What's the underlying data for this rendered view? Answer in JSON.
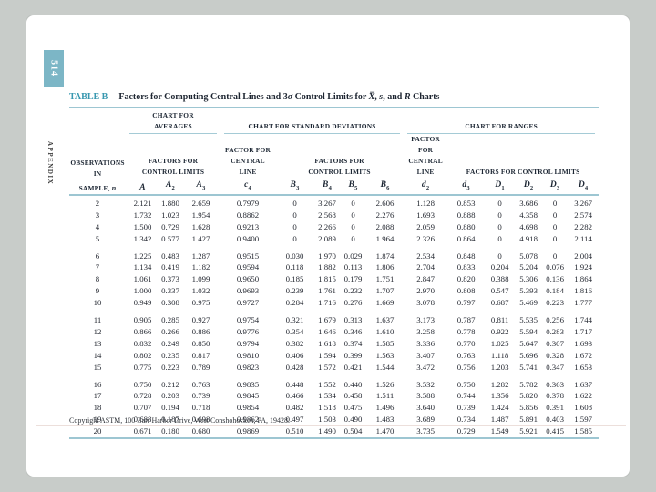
{
  "page": {
    "page_number": "514",
    "sidebar_label": "APPENDIX",
    "copyright": "Copyright ASTM, 100 Barr Harbor Drive, West Conshohocken, PA, 19428."
  },
  "table": {
    "label": "TABLE B",
    "title_parts": [
      {
        "t": "Factors for Computing Central Lines and 3",
        "i": false
      },
      {
        "t": "σ",
        "i": true
      },
      {
        "t": " Control Limits for ",
        "i": false
      },
      {
        "t": "X̅",
        "i": true
      },
      {
        "t": ", ",
        "i": false
      },
      {
        "t": "s",
        "i": true
      },
      {
        "t": ", and ",
        "i": false
      },
      {
        "t": "R",
        "i": true
      },
      {
        "t": " Charts",
        "i": false
      }
    ],
    "obs_header": {
      "line1": "OBSERVATIONS",
      "line2": "IN",
      "line3": "SAMPLE,",
      "symbol": "n"
    },
    "groups": {
      "averages_line1": "CHART FOR",
      "averages_line2": "AVERAGES",
      "stddev": "CHART FOR STANDARD DEVIATIONS",
      "ranges": "CHART FOR RANGES"
    },
    "subheads": {
      "avg_factors": [
        "FACTORS FOR",
        "CONTROL LIMITS"
      ],
      "sd_central": [
        "FACTOR FOR",
        "CENTRAL LINE"
      ],
      "sd_factors": [
        "FACTORS FOR",
        "CONTROL LIMITS"
      ],
      "rg_central": [
        "FACTOR FOR",
        "CENTRAL LINE"
      ],
      "rg_factors": "FACTORS FOR CONTROL LIMITS"
    },
    "symbols": [
      {
        "b": "A",
        "s": ""
      },
      {
        "b": "A",
        "s": "2"
      },
      {
        "b": "A",
        "s": "3"
      },
      {
        "b": "c",
        "s": "4"
      },
      {
        "b": "B",
        "s": "3"
      },
      {
        "b": "B",
        "s": "4"
      },
      {
        "b": "B",
        "s": "5"
      },
      {
        "b": "B",
        "s": "6"
      },
      {
        "b": "d",
        "s": "2"
      },
      {
        "b": "d",
        "s": "3"
      },
      {
        "b": "D",
        "s": "1"
      },
      {
        "b": "D",
        "s": "2"
      },
      {
        "b": "D",
        "s": "3"
      },
      {
        "b": "D",
        "s": "4"
      }
    ],
    "group_gap_after": [
      "5",
      "10",
      "15"
    ],
    "rows": [
      [
        "2",
        "2.121",
        "1.880",
        "2.659",
        "0.7979",
        "0",
        "3.267",
        "0",
        "2.606",
        "1.128",
        "0.853",
        "0",
        "3.686",
        "0",
        "3.267"
      ],
      [
        "3",
        "1.732",
        "1.023",
        "1.954",
        "0.8862",
        "0",
        "2.568",
        "0",
        "2.276",
        "1.693",
        "0.888",
        "0",
        "4.358",
        "0",
        "2.574"
      ],
      [
        "4",
        "1.500",
        "0.729",
        "1.628",
        "0.9213",
        "0",
        "2.266",
        "0",
        "2.088",
        "2.059",
        "0.880",
        "0",
        "4.698",
        "0",
        "2.282"
      ],
      [
        "5",
        "1.342",
        "0.577",
        "1.427",
        "0.9400",
        "0",
        "2.089",
        "0",
        "1.964",
        "2.326",
        "0.864",
        "0",
        "4.918",
        "0",
        "2.114"
      ],
      [
        "6",
        "1.225",
        "0.483",
        "1.287",
        "0.9515",
        "0.030",
        "1.970",
        "0.029",
        "1.874",
        "2.534",
        "0.848",
        "0",
        "5.078",
        "0",
        "2.004"
      ],
      [
        "7",
        "1.134",
        "0.419",
        "1.182",
        "0.9594",
        "0.118",
        "1.882",
        "0.113",
        "1.806",
        "2.704",
        "0.833",
        "0.204",
        "5.204",
        "0.076",
        "1.924"
      ],
      [
        "8",
        "1.061",
        "0.373",
        "1.099",
        "0.9650",
        "0.185",
        "1.815",
        "0.179",
        "1.751",
        "2.847",
        "0.820",
        "0.388",
        "5.306",
        "0.136",
        "1.864"
      ],
      [
        "9",
        "1.000",
        "0.337",
        "1.032",
        "0.9693",
        "0.239",
        "1.761",
        "0.232",
        "1.707",
        "2.970",
        "0.808",
        "0.547",
        "5.393",
        "0.184",
        "1.816"
      ],
      [
        "10",
        "0.949",
        "0.308",
        "0.975",
        "0.9727",
        "0.284",
        "1.716",
        "0.276",
        "1.669",
        "3.078",
        "0.797",
        "0.687",
        "5.469",
        "0.223",
        "1.777"
      ],
      [
        "11",
        "0.905",
        "0.285",
        "0.927",
        "0.9754",
        "0.321",
        "1.679",
        "0.313",
        "1.637",
        "3.173",
        "0.787",
        "0.811",
        "5.535",
        "0.256",
        "1.744"
      ],
      [
        "12",
        "0.866",
        "0.266",
        "0.886",
        "0.9776",
        "0.354",
        "1.646",
        "0.346",
        "1.610",
        "3.258",
        "0.778",
        "0.922",
        "5.594",
        "0.283",
        "1.717"
      ],
      [
        "13",
        "0.832",
        "0.249",
        "0.850",
        "0.9794",
        "0.382",
        "1.618",
        "0.374",
        "1.585",
        "3.336",
        "0.770",
        "1.025",
        "5.647",
        "0.307",
        "1.693"
      ],
      [
        "14",
        "0.802",
        "0.235",
        "0.817",
        "0.9810",
        "0.406",
        "1.594",
        "0.399",
        "1.563",
        "3.407",
        "0.763",
        "1.118",
        "5.696",
        "0.328",
        "1.672"
      ],
      [
        "15",
        "0.775",
        "0.223",
        "0.789",
        "0.9823",
        "0.428",
        "1.572",
        "0.421",
        "1.544",
        "3.472",
        "0.756",
        "1.203",
        "5.741",
        "0.347",
        "1.653"
      ],
      [
        "16",
        "0.750",
        "0.212",
        "0.763",
        "0.9835",
        "0.448",
        "1.552",
        "0.440",
        "1.526",
        "3.532",
        "0.750",
        "1.282",
        "5.782",
        "0.363",
        "1.637"
      ],
      [
        "17",
        "0.728",
        "0.203",
        "0.739",
        "0.9845",
        "0.466",
        "1.534",
        "0.458",
        "1.511",
        "3.588",
        "0.744",
        "1.356",
        "5.820",
        "0.378",
        "1.622"
      ],
      [
        "18",
        "0.707",
        "0.194",
        "0.718",
        "0.9854",
        "0.482",
        "1.518",
        "0.475",
        "1.496",
        "3.640",
        "0.739",
        "1.424",
        "5.856",
        "0.391",
        "1.608"
      ],
      [
        "19",
        "0.688",
        "0.187",
        "0.698",
        "0.9862",
        "0.497",
        "1.503",
        "0.490",
        "1.483",
        "3.689",
        "0.734",
        "1.487",
        "5.891",
        "0.403",
        "1.597"
      ],
      [
        "20",
        "0.671",
        "0.180",
        "0.680",
        "0.9869",
        "0.510",
        "1.490",
        "0.504",
        "1.470",
        "3.735",
        "0.729",
        "1.549",
        "5.921",
        "0.415",
        "1.585"
      ]
    ]
  }
}
